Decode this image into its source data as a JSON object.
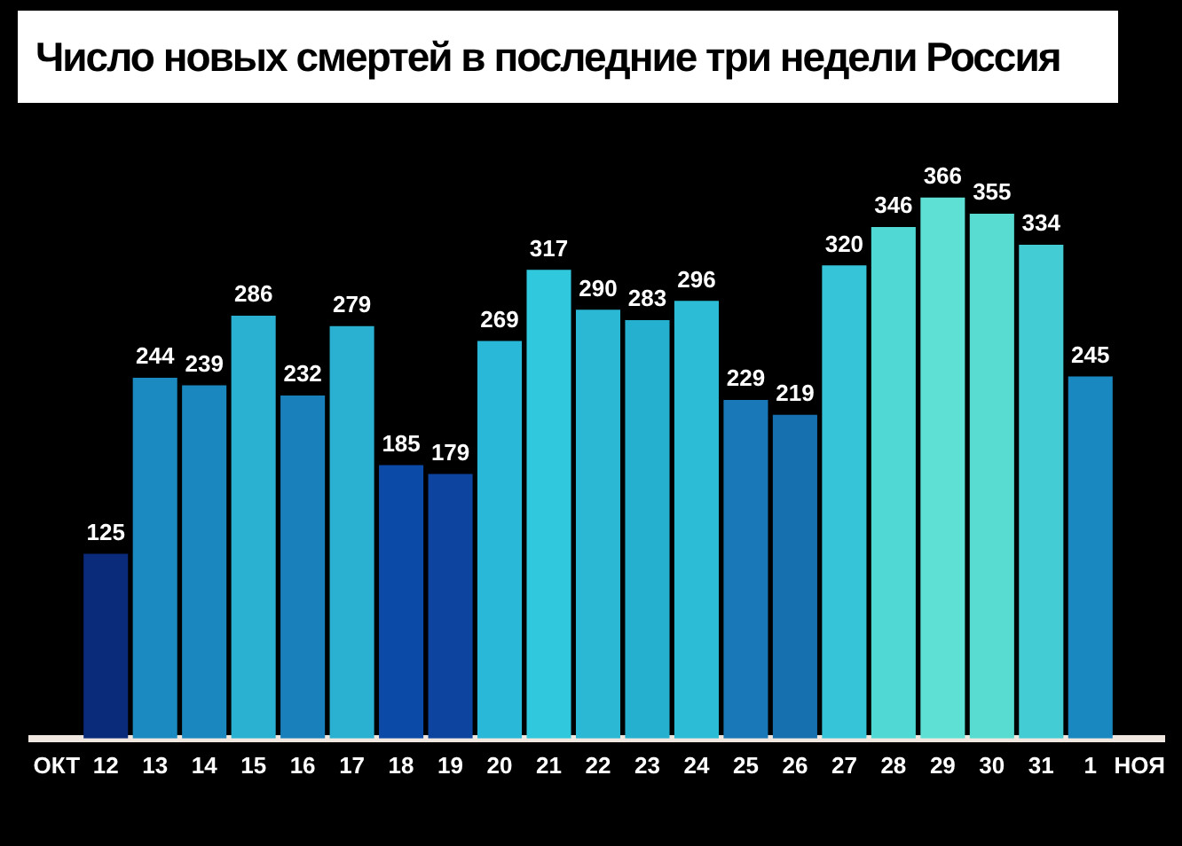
{
  "chart_data": {
    "type": "bar",
    "title": "Число новых смертей в последние три недели  Россия",
    "categories": [
      "ОКТ",
      "12",
      "13",
      "14",
      "15",
      "16",
      "17",
      "18",
      "19",
      "20",
      "21",
      "22",
      "23",
      "24",
      "25",
      "26",
      "27",
      "28",
      "29",
      "30",
      "31",
      "1",
      "НОЯ"
    ],
    "values": [
      null,
      125,
      244,
      239,
      286,
      232,
      279,
      185,
      179,
      269,
      317,
      290,
      283,
      296,
      229,
      219,
      320,
      346,
      366,
      355,
      334,
      245,
      null
    ],
    "colors": [
      "#000000",
      "#0a2a7a",
      "#1a8ac0",
      "#1a88bf",
      "#2ab0d0",
      "#1a80bb",
      "#2ab0d0",
      "#0c4aa8",
      "#0c44a0",
      "#2ab8d8",
      "#30c8dc",
      "#2ab8d4",
      "#26b0d0",
      "#2cbcd6",
      "#1878b8",
      "#1670b0",
      "#36c4d8",
      "#50d8d4",
      "#5ee0d4",
      "#58dcd2",
      "#44ccd4",
      "#1a88c0",
      "#000000"
    ],
    "data_labels": true,
    "grid": false,
    "legend": false
  }
}
